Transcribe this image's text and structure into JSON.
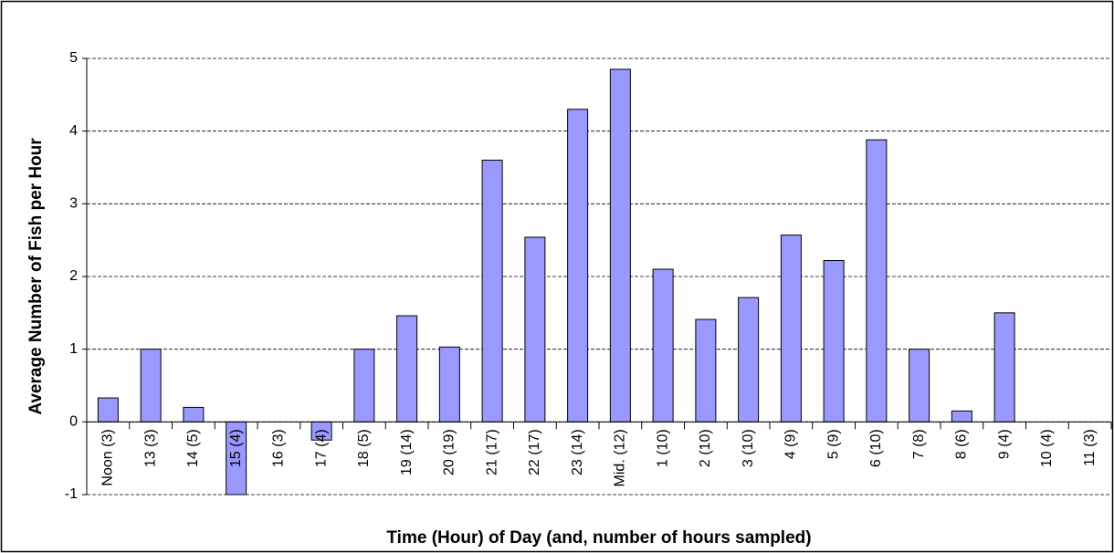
{
  "chart_data": {
    "type": "bar",
    "x_label": "Time (Hour) of Day (and, number of hours sampled)",
    "y_label": "Average Number of Fish per Hour",
    "categories": [
      "Noon (3)",
      "13 (3)",
      "14 (5)",
      "15 (4)",
      "16 (3)",
      "17 (4)",
      "18 (5)",
      "19 (14)",
      "20 (19)",
      "21 (17)",
      "22 (17)",
      "23 (14)",
      "Mid. (12)",
      "1 (10)",
      "2 (10)",
      "3 (10)",
      "4 (9)",
      "5 (9)",
      "6 (10)",
      "7 (8)",
      "8 (6)",
      "9 (4)",
      "10 (4)",
      "11 (3)"
    ],
    "values": [
      0.33,
      1.0,
      0.2,
      -1.0,
      0,
      -0.25,
      1.0,
      1.46,
      1.03,
      3.6,
      2.54,
      4.3,
      4.85,
      2.1,
      1.41,
      1.71,
      2.57,
      2.22,
      3.88,
      1.0,
      0.15,
      1.5,
      0,
      0
    ],
    "color": "#9999ff",
    "ylim": [
      -1,
      5
    ],
    "yticks": [
      -1,
      0,
      1,
      2,
      3,
      4,
      5
    ],
    "grid": true
  }
}
